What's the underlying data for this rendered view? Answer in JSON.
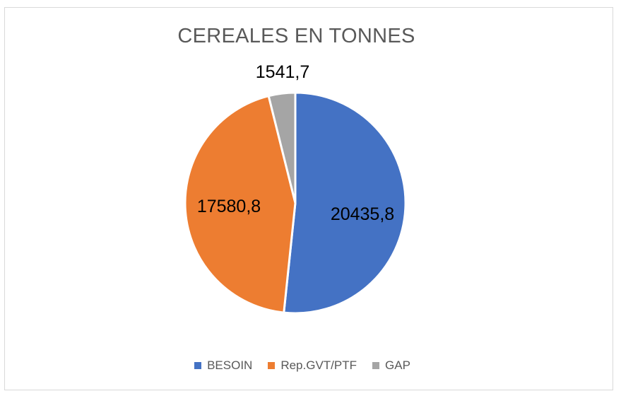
{
  "chart_data": {
    "type": "pie",
    "title": "CEREALES EN TONNES",
    "categories": [
      "BESOIN",
      "Rep.GVT/PTF",
      "GAP"
    ],
    "values": [
      20435.8,
      17580.8,
      1541.7
    ],
    "labels": [
      "20435,8",
      "17580,8",
      "1541,7"
    ],
    "colors": [
      "#4472c4",
      "#ed7d31",
      "#a5a5a5"
    ],
    "legend_position": "bottom",
    "start_angle_deg": 0,
    "direction": "clockwise"
  }
}
